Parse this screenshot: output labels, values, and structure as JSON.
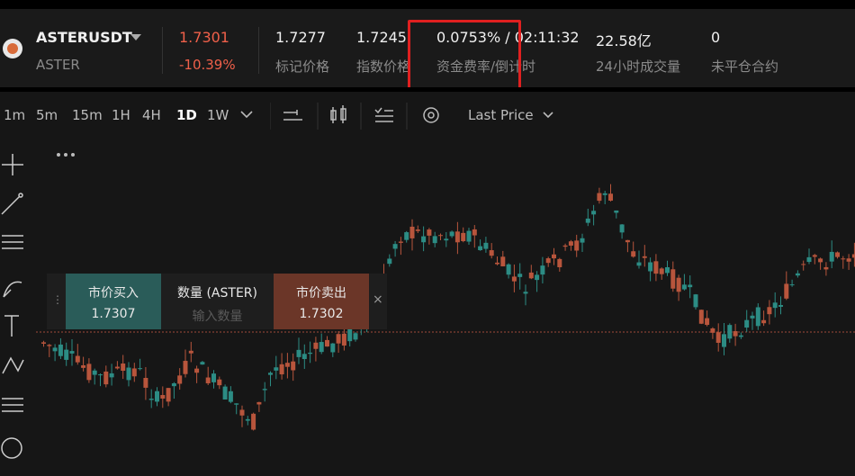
{
  "header": {
    "symbol": "ASTERUSDT",
    "base": "ASTER",
    "last_price": "1.7301",
    "change": "-10.39%",
    "mark_price": "1.7277",
    "mark_label": "标记价格",
    "index_price": "1.7245",
    "index_label": "指数价格",
    "funding": "0.0753% / 02:11:32",
    "funding_label": "资金费率/倒计时",
    "volume": "22.58亿",
    "volume_label": "24小时成交量",
    "open_interest": "0",
    "open_interest_label": "未平仓合约"
  },
  "toolbar": {
    "intervals": [
      "1m",
      "5m",
      "15m",
      "1H",
      "4H",
      "1D",
      "1W"
    ],
    "price_type": "Last Price"
  },
  "trade_widget": {
    "buy_label": "市价买入",
    "buy_price": "1.7307",
    "qty_label": "数量 (ASTER)",
    "qty_placeholder": "输入数量",
    "sell_label": "市价卖出",
    "sell_price": "1.7302"
  }
}
